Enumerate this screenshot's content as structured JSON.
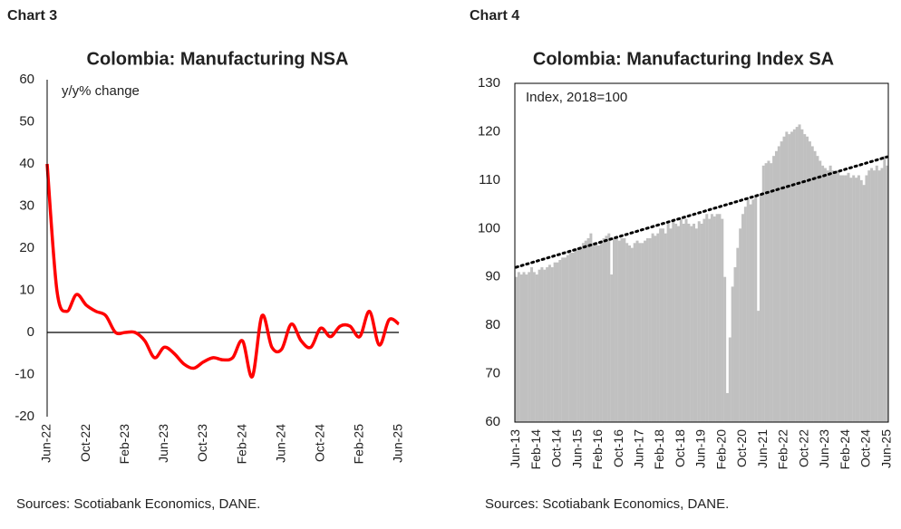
{
  "chart_data": [
    {
      "type": "line",
      "label": "Chart 3",
      "title": "Colombia: Manufacturing NSA",
      "annotation": "y/y% change",
      "source": "Sources: Scotiabank Economics, DANE.",
      "color": "#ff0000",
      "grid": false,
      "categories": [
        "Jun-22",
        null,
        null,
        null,
        "Oct-22",
        null,
        null,
        null,
        "Feb-23",
        null,
        null,
        null,
        "Jun-23",
        null,
        null,
        null,
        "Oct-23",
        null,
        null,
        null,
        "Feb-24",
        null,
        null,
        null,
        "Jun-24",
        null,
        null,
        null,
        "Oct-24",
        null,
        null,
        null,
        "Feb-25",
        null,
        null,
        null,
        "Jun-25"
      ],
      "values": [
        40,
        10,
        5,
        9,
        6.5,
        5,
        4,
        0,
        0,
        0,
        -2,
        -6,
        -3.5,
        -5,
        -7.5,
        -8.5,
        -7,
        -6,
        -6.5,
        -6,
        -2,
        -10.5,
        4,
        -3.5,
        -4,
        2,
        -2,
        -3.5,
        1,
        -1,
        1.5,
        1.5,
        -1,
        5,
        -3,
        3,
        2
      ],
      "ylim": [
        -20,
        60
      ],
      "yticks": [
        -20,
        -10,
        0,
        10,
        20,
        30,
        40,
        50,
        60
      ]
    },
    {
      "type": "bar",
      "label": "Chart 4",
      "title": "Colombia: Manufacturing Index SA",
      "annotation": "Index, 2018=100",
      "source": "Sources: Scotiabank Economics, DANE.",
      "color": "#c0c0c0",
      "grid": false,
      "trend_line": [
        92,
        114.8
      ],
      "categories": [
        "Jun-13",
        null,
        null,
        null,
        null,
        null,
        null,
        null,
        "Feb-14",
        null,
        null,
        null,
        null,
        null,
        null,
        null,
        "Oct-14",
        null,
        null,
        null,
        null,
        null,
        null,
        null,
        "Jun-15",
        null,
        null,
        null,
        null,
        null,
        null,
        null,
        "Feb-16",
        null,
        null,
        null,
        null,
        null,
        null,
        null,
        "Oct-16",
        null,
        null,
        null,
        null,
        null,
        null,
        null,
        "Jun-17",
        null,
        null,
        null,
        null,
        null,
        null,
        null,
        "Feb-18",
        null,
        null,
        null,
        null,
        null,
        null,
        null,
        "Oct-18",
        null,
        null,
        null,
        null,
        null,
        null,
        null,
        "Jun-19",
        null,
        null,
        null,
        null,
        null,
        null,
        null,
        "Feb-20",
        null,
        null,
        null,
        null,
        null,
        null,
        null,
        "Oct-20",
        null,
        null,
        null,
        null,
        null,
        null,
        null,
        "Jun-21",
        null,
        null,
        null,
        null,
        null,
        null,
        null,
        "Feb-22",
        null,
        null,
        null,
        null,
        null,
        null,
        null,
        "Oct-22",
        null,
        null,
        null,
        null,
        null,
        null,
        null,
        "Jun-23",
        null,
        null,
        null,
        null,
        null,
        null,
        null,
        "Feb-24",
        null,
        null,
        null,
        null,
        null,
        null,
        null,
        "Oct-24",
        null,
        null,
        null,
        null,
        null,
        null,
        null,
        "Jun-25"
      ],
      "values": [
        90,
        91,
        90.5,
        91,
        90.5,
        91,
        92,
        91,
        90.5,
        91.5,
        92,
        91.5,
        92,
        92.5,
        92,
        93,
        93,
        93.5,
        94,
        94,
        94.5,
        95,
        95,
        95.5,
        96,
        96,
        97,
        97.5,
        98,
        99,
        97,
        97,
        96.5,
        97,
        98,
        98.5,
        99,
        90.5,
        98,
        98,
        97.5,
        98,
        98,
        97,
        96.5,
        96,
        97,
        97.5,
        97,
        97,
        97.5,
        98,
        98,
        99,
        98.5,
        99,
        100,
        100,
        99,
        101,
        100,
        102,
        101,
        100.5,
        102,
        101,
        102,
        101,
        100.5,
        101,
        100,
        101.5,
        101,
        102,
        103,
        102,
        103,
        102.5,
        103,
        103,
        102,
        90,
        66,
        77.5,
        88,
        92,
        96,
        100,
        103,
        104.5,
        106,
        105,
        106,
        107,
        83,
        107,
        113,
        113.5,
        114,
        113.5,
        115,
        116,
        117,
        118,
        119,
        120,
        119.5,
        120,
        120.5,
        121,
        121.5,
        120.5,
        119.5,
        119,
        118,
        117,
        116,
        115,
        114,
        113,
        112.5,
        112,
        113,
        112,
        111.5,
        112,
        111,
        111,
        111,
        111.5,
        110.5,
        111,
        110.5,
        111,
        110,
        109,
        111,
        112,
        112.5,
        112,
        113,
        112,
        112.5,
        115,
        113
      ],
      "ylim": [
        60,
        130
      ],
      "yticks": [
        60,
        70,
        80,
        90,
        100,
        110,
        120,
        130
      ]
    }
  ]
}
